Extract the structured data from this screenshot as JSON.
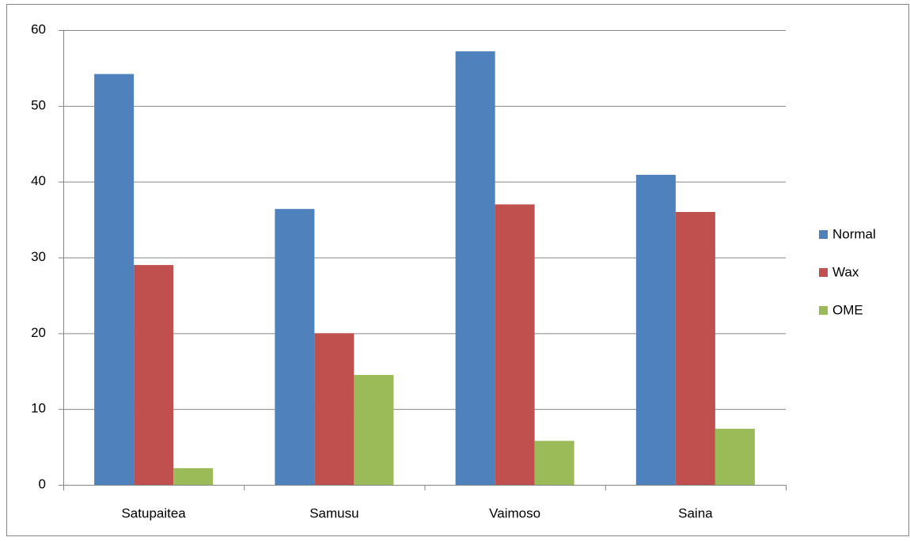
{
  "chart_data": {
    "type": "bar",
    "categories": [
      "Satupaitea",
      "Samusu",
      "Vaimoso",
      "Saina"
    ],
    "series": [
      {
        "name": "Normal",
        "color": "#4f81bd",
        "values": [
          54.2,
          36.4,
          57.2,
          40.9
        ]
      },
      {
        "name": "Wax",
        "color": "#c0504d",
        "values": [
          29.0,
          20.0,
          37.0,
          36.0
        ]
      },
      {
        "name": "OME",
        "color": "#9bbb59",
        "values": [
          2.2,
          14.5,
          5.8,
          7.4
        ]
      }
    ],
    "ylim": [
      0,
      60
    ],
    "yticks": [
      0,
      10,
      20,
      30,
      40,
      50,
      60
    ],
    "grid": true,
    "legend": "right"
  }
}
